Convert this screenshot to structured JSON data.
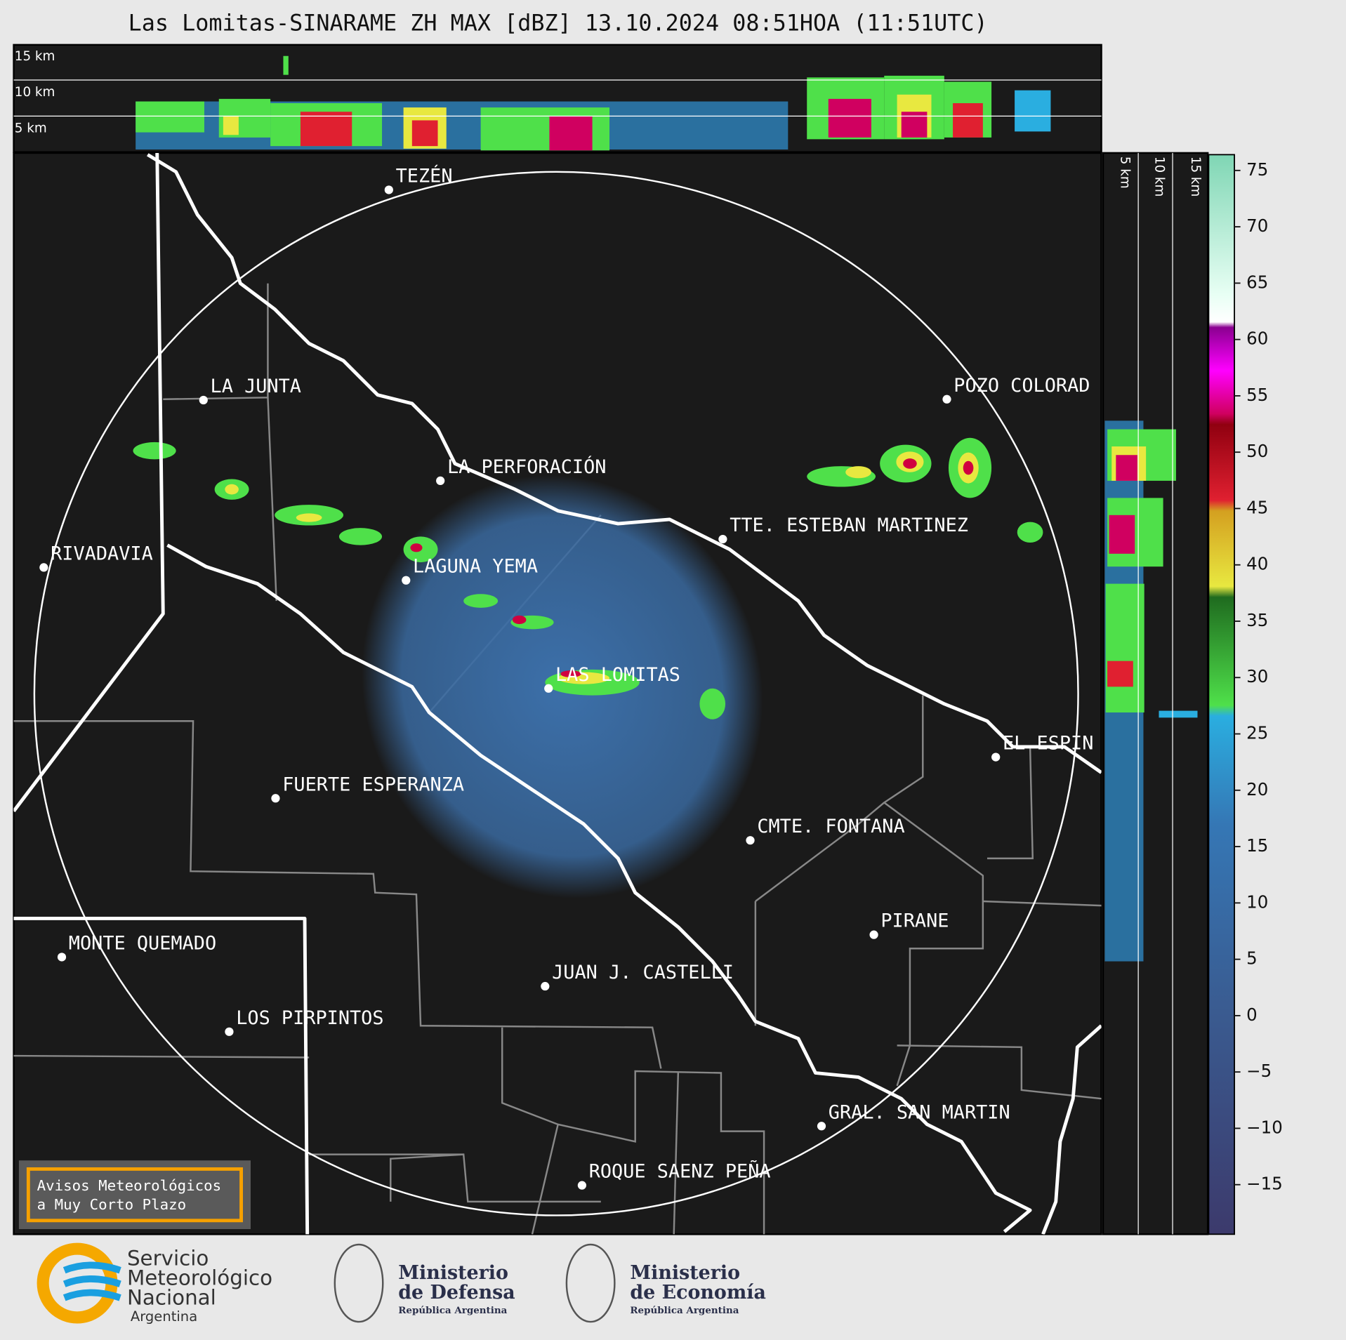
{
  "title": "Las Lomitas-SINARAME ZH MAX [dBZ] 13.10.2024 08:51HOA (11:51UTC)",
  "height_labels": [
    "15 km",
    "10 km",
    "5 km"
  ],
  "side_height_labels": [
    "5 km",
    "10 km",
    "15 km"
  ],
  "places": [
    "TEZÉN",
    "LA JUNTA",
    "LA PERFORACIÓN",
    "POZO COLORAD",
    "RIVADAVIA",
    "LAGUNA YEMA",
    "TTE. ESTEBAN MARTINEZ",
    "LAS LOMITAS",
    "EL ESPIN",
    "FUERTE ESPERANZA",
    "CMTE. FONTANA",
    "PIRANE",
    "MONTE QUEMADO",
    "JUAN J. CASTELLI",
    "LOS PIRPINTOS",
    "GRAL. SAN MARTIN",
    "ROQUE SAENZ PEÑA"
  ],
  "colorbar": {
    "ylim": [
      -19.4,
      76.4
    ],
    "yticks": [
      75,
      70,
      65,
      60,
      55,
      50,
      45,
      40,
      35,
      30,
      25,
      20,
      15,
      10,
      5,
      0,
      {
        "value": -5,
        "label": "−5"
      },
      {
        "value": -10,
        "label": "−10"
      },
      {
        "value": -15,
        "label": "−15"
      }
    ]
  },
  "notice": [
    "Avisos Meteorológicos",
    "a Muy Corto Plazo"
  ],
  "logos": {
    "smn": [
      "Servicio",
      "Meteorológico",
      "Nacional",
      "Argentina"
    ],
    "defensa": [
      "Ministerio",
      "de Defensa",
      "República Argentina"
    ],
    "economia": [
      "Ministerio",
      "de Economía",
      "República Argentina"
    ]
  }
}
